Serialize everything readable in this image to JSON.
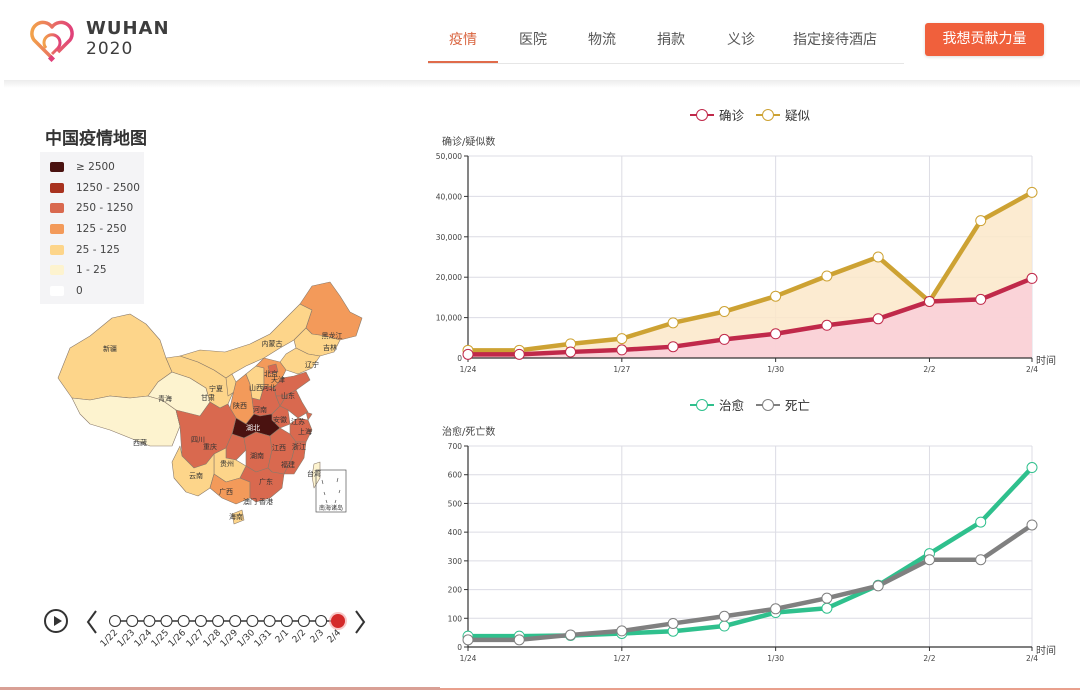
{
  "header": {
    "logo_line1": "WUHAN",
    "logo_line2": "2020",
    "nav": [
      {
        "label": "疫情",
        "active": true
      },
      {
        "label": "医院",
        "active": false
      },
      {
        "label": "物流",
        "active": false
      },
      {
        "label": "捐款",
        "active": false
      },
      {
        "label": "义诊",
        "active": false
      },
      {
        "label": "指定接待酒店",
        "active": false
      }
    ],
    "cta_label": "我想贡献力量",
    "accent_color": "#f0603c"
  },
  "map": {
    "title": "中国疫情地图",
    "legend": [
      {
        "label": "≥ 2500",
        "color": "#4a1210"
      },
      {
        "label": "1250 - 2500",
        "color": "#a8321f"
      },
      {
        "label": "250 - 1250",
        "color": "#d9694f"
      },
      {
        "label": "125 - 250",
        "color": "#f39a5a"
      },
      {
        "label": "25 - 125",
        "color": "#fdd58a"
      },
      {
        "label": "1 - 25",
        "color": "#fdf3cf"
      },
      {
        "label": "0",
        "color": "#ffffff"
      }
    ],
    "province_labels": [
      "新疆",
      "西藏",
      "青海",
      "甘肃",
      "宁夏",
      "内蒙古",
      "黑龙江",
      "吉林",
      "辽宁",
      "北京",
      "天津",
      "山西",
      "河北",
      "山东",
      "陕西",
      "河南",
      "江苏",
      "安徽",
      "上海",
      "湖北",
      "四川",
      "重庆",
      "浙江",
      "江西",
      "湖南",
      "贵州",
      "云南",
      "福建",
      "台湾",
      "广西",
      "广东",
      "澳门",
      "香港",
      "海南",
      "南海诸岛"
    ]
  },
  "timeline": {
    "dates": [
      "1/22",
      "1/23",
      "1/24",
      "1/25",
      "1/26",
      "1/27",
      "1/28",
      "1/29",
      "1/30",
      "1/31",
      "2/1",
      "2/2",
      "2/3",
      "2/4"
    ],
    "current": "2/4"
  },
  "chart_data": [
    {
      "type": "area",
      "title": "",
      "legend": [
        "确诊",
        "疑似"
      ],
      "xlabel": "时间",
      "ylabel": "确诊/疑似数",
      "categories": [
        "1/24",
        "1/25",
        "1/26",
        "1/27",
        "1/28",
        "1/29",
        "1/30",
        "1/31",
        "2/1",
        "2/2",
        "2/3",
        "2/4"
      ],
      "x_tick_labels": [
        "1/24",
        "1/27",
        "1/30",
        "2/2",
        "2/4"
      ],
      "y_tick_labels": [
        "0",
        "10,000",
        "20,000",
        "30,000",
        "40,000",
        "50,000"
      ],
      "ylim": [
        0,
        50000
      ],
      "series": [
        {
          "name": "确诊",
          "color": "#c0294a",
          "fill": "#f9cfd9",
          "values": [
            900,
            900,
            1500,
            2000,
            2800,
            4600,
            6000,
            8100,
            9700,
            14000,
            14500,
            19700
          ]
        },
        {
          "name": "疑似",
          "color": "#cda233",
          "fill": "#fbe8c9",
          "values": [
            1900,
            1900,
            3500,
            4800,
            8700,
            11500,
            15300,
            20300,
            25000,
            14000,
            34000,
            41000
          ]
        }
      ]
    },
    {
      "type": "line",
      "title": "",
      "legend": [
        "治愈",
        "死亡"
      ],
      "xlabel": "时间",
      "ylabel": "治愈/死亡数",
      "categories": [
        "1/24",
        "1/25",
        "1/26",
        "1/27",
        "1/28",
        "1/29",
        "1/30",
        "1/31",
        "2/1",
        "2/2",
        "2/3",
        "2/4"
      ],
      "x_tick_labels": [
        "1/24",
        "1/27",
        "1/30",
        "2/2",
        "2/4"
      ],
      "y_tick_labels": [
        "0",
        "100",
        "200",
        "300",
        "400",
        "500",
        "600",
        "700"
      ],
      "ylim": [
        0,
        700
      ],
      "series": [
        {
          "name": "治愈",
          "color": "#2fc08d",
          "values": [
            38,
            38,
            40,
            47,
            55,
            73,
            120,
            135,
            215,
            325,
            435,
            625
          ]
        },
        {
          "name": "死亡",
          "color": "#808080",
          "values": [
            25,
            25,
            42,
            56,
            82,
            107,
            133,
            170,
            213,
            304,
            304,
            425
          ]
        }
      ]
    }
  ]
}
